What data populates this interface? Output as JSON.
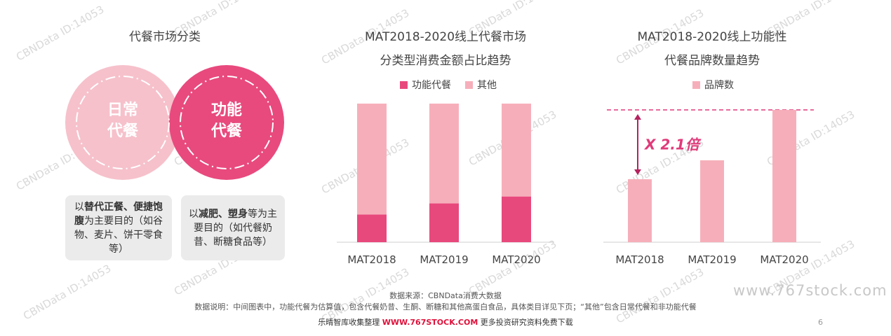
{
  "left_panel": {
    "title": "代餐市场分类",
    "circle_daily": {
      "line1": "日常",
      "line2": "代餐"
    },
    "circle_functional": {
      "line1": "功能",
      "line2": "代餐"
    },
    "box_daily": {
      "pre": "以",
      "bold1": "替代正餐、便捷饱腹",
      "post": "为主要目的（如谷物、麦片、饼干零食等）"
    },
    "box_functional": {
      "pre": "以",
      "bold1": "减肥、塑身",
      "post": "等为主要目的（如代餐奶昔、断糖食品等）"
    },
    "colors": {
      "daily": "#f6c1cb",
      "functional": "#e84a7e"
    }
  },
  "chart_data": [
    {
      "type": "bar",
      "stacked": true,
      "title_line1": "MAT2018-2020线上代餐市场",
      "title_line2": "分类型消费金额占比趋势",
      "categories": [
        "MAT2018",
        "MAT2019",
        "MAT2020"
      ],
      "series": [
        {
          "name": "功能代餐",
          "values": [
            20,
            28,
            33
          ],
          "color": "#e8497d"
        },
        {
          "name": "其他",
          "values": [
            80,
            72,
            67
          ],
          "color": "#f6afba"
        }
      ],
      "ylim": [
        0,
        100
      ],
      "legend_position": "top-center"
    },
    {
      "type": "bar",
      "title_line1": "MAT2018-2020线上功能性",
      "title_line2": "代餐品牌数量趋势",
      "categories": [
        "MAT2018",
        "MAT2019",
        "MAT2020"
      ],
      "series": [
        {
          "name": "品牌数",
          "values": [
            1,
            1.3,
            2.1
          ],
          "color": "#f6afba"
        }
      ],
      "ylim": [
        0,
        2.1
      ],
      "annotation": "X 2.1倍",
      "annotation_color": "#e03a7a",
      "legend_position": "top-center"
    }
  ],
  "notes": {
    "source": "数据来源：CBNData消费大数据",
    "explanation": "数据说明：中间图表中，功能代餐为估算值，包含代餐奶昔、生酮、断糖和其他高蛋白食品，具体类目详见下页；“其他”包含日常代餐和非功能代餐"
  },
  "footer": {
    "pre": "乐晴智库收集整理 ",
    "url": "WWW.767STOCK.COM",
    "post": " 更多投资研究资料免费下载",
    "page_number": "6"
  },
  "watermark": {
    "text": "CBNData ID:14053",
    "site": "www.767stock.com"
  }
}
